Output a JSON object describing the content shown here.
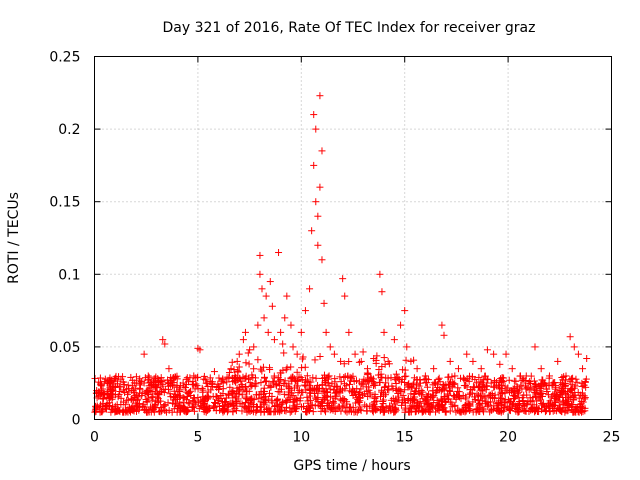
{
  "chart_data": {
    "type": "scatter",
    "title": "Day 321 of 2016, Rate Of TEC Index for receiver graz",
    "xlabel": "GPS time / hours",
    "ylabel": "ROTI / TECUs",
    "xlim": [
      0,
      25
    ],
    "ylim": [
      0,
      0.25
    ],
    "xticks": [
      0,
      5,
      10,
      15,
      20,
      25
    ],
    "xtick_labels": [
      "0",
      "5",
      "10",
      "15",
      "20",
      "25"
    ],
    "yticks": [
      0,
      0.05,
      0.1,
      0.15,
      0.2,
      0.25
    ],
    "ytick_labels": [
      "0",
      "0.05",
      "0.1",
      "0.15",
      "0.2",
      "0.25"
    ],
    "grid": true,
    "marker": "+",
    "color": "#ff0000",
    "series": [
      {
        "name": "ROTI",
        "x": [
          0.1,
          0.3,
          0.6,
          1.0,
          1.4,
          1.8,
          2.2,
          2.4,
          2.6,
          3.0,
          3.3,
          3.4,
          3.6,
          4.0,
          4.4,
          4.8,
          5.0,
          5.1,
          5.4,
          5.8,
          6.2,
          6.6,
          6.9,
          7.0,
          7.2,
          7.3,
          7.5,
          7.7,
          7.9,
          8.0,
          8.0,
          8.1,
          8.2,
          8.3,
          8.4,
          8.5,
          8.6,
          8.7,
          8.9,
          9.0,
          9.1,
          9.2,
          9.3,
          9.5,
          9.6,
          9.8,
          10.0,
          10.2,
          10.4,
          10.5,
          10.6,
          10.6,
          10.7,
          10.7,
          10.8,
          10.8,
          10.9,
          10.9,
          11.0,
          11.0,
          11.1,
          11.2,
          11.4,
          11.6,
          11.9,
          12.0,
          12.1,
          12.3,
          12.6,
          12.9,
          13.2,
          13.5,
          13.8,
          13.9,
          14.0,
          14.2,
          14.5,
          14.8,
          15.0,
          15.1,
          15.3,
          15.6,
          16.0,
          16.4,
          16.8,
          16.9,
          17.2,
          17.6,
          18.0,
          18.3,
          18.7,
          19.0,
          19.3,
          19.6,
          19.9,
          20.2,
          20.6,
          21.0,
          21.3,
          21.6,
          22.0,
          22.4,
          22.8,
          23.0,
          23.2,
          23.4,
          23.6,
          23.8
        ],
        "y": [
          0.018,
          0.025,
          0.015,
          0.022,
          0.012,
          0.02,
          0.025,
          0.045,
          0.03,
          0.022,
          0.055,
          0.052,
          0.035,
          0.028,
          0.022,
          0.03,
          0.049,
          0.048,
          0.025,
          0.033,
          0.028,
          0.035,
          0.04,
          0.045,
          0.055,
          0.06,
          0.048,
          0.05,
          0.065,
          0.113,
          0.1,
          0.09,
          0.07,
          0.085,
          0.06,
          0.095,
          0.078,
          0.055,
          0.115,
          0.06,
          0.052,
          0.07,
          0.085,
          0.065,
          0.05,
          0.045,
          0.06,
          0.075,
          0.09,
          0.13,
          0.21,
          0.175,
          0.2,
          0.15,
          0.14,
          0.12,
          0.223,
          0.16,
          0.185,
          0.11,
          0.08,
          0.06,
          0.05,
          0.045,
          0.04,
          0.097,
          0.085,
          0.06,
          0.045,
          0.04,
          0.035,
          0.042,
          0.1,
          0.088,
          0.06,
          0.04,
          0.055,
          0.065,
          0.075,
          0.05,
          0.04,
          0.035,
          0.03,
          0.035,
          0.065,
          0.058,
          0.04,
          0.035,
          0.045,
          0.04,
          0.035,
          0.048,
          0.045,
          0.038,
          0.045,
          0.035,
          0.03,
          0.025,
          0.05,
          0.035,
          0.03,
          0.04,
          0.03,
          0.057,
          0.05,
          0.045,
          0.035,
          0.042
        ]
      }
    ]
  }
}
